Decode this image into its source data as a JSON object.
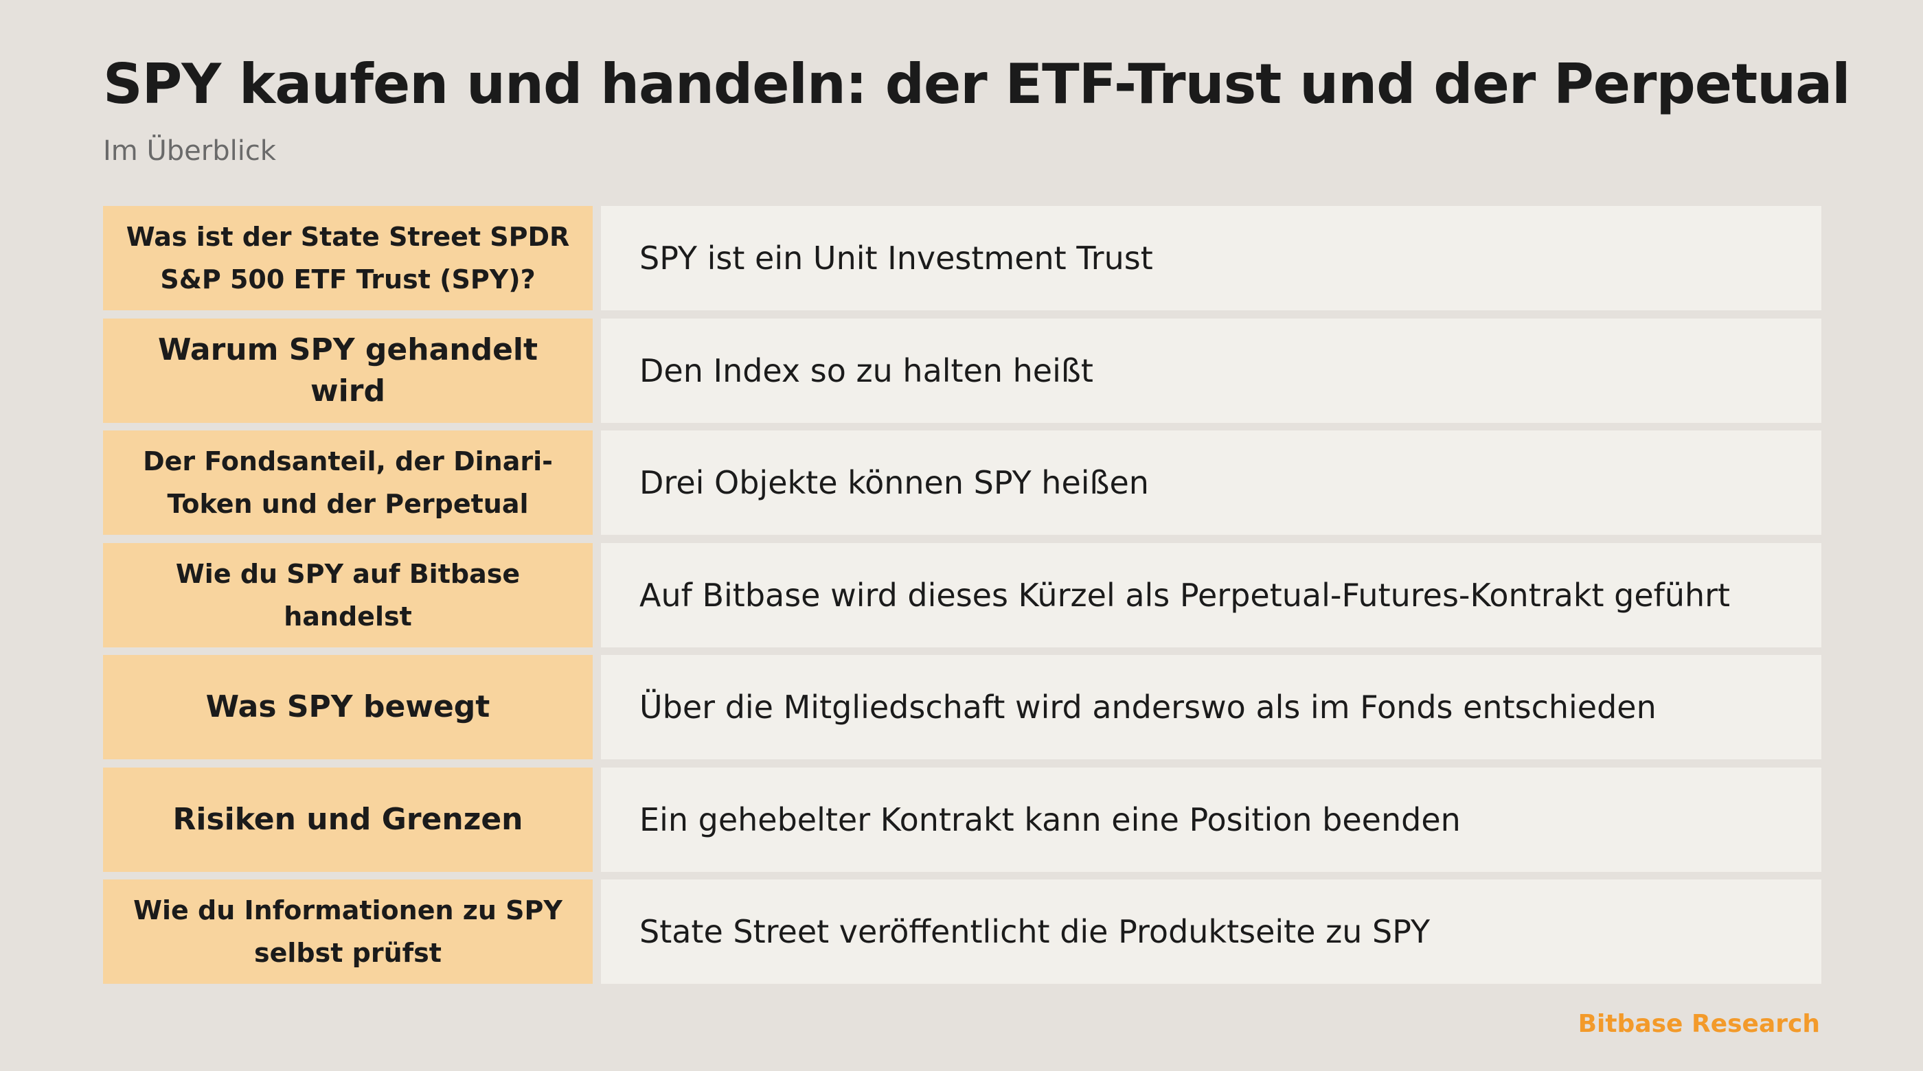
{
  "header": {
    "title": "SPY kaufen und handeln: der ETF-Trust und der Perpetual",
    "subtitle": "Im Überblick"
  },
  "table": {
    "rows": [
      {
        "label": "Was ist der State Street SPDR S&P 500 ETF Trust (SPY)?",
        "value": "SPY ist ein Unit Investment Trust"
      },
      {
        "label": "Warum SPY gehandelt wird",
        "value": "Den Index so zu halten heißt"
      },
      {
        "label": "Der Fondsanteil, der Dinari-Token und der Perpetual",
        "value": "Drei Objekte können SPY heißen"
      },
      {
        "label": "Wie du SPY auf Bitbase handelst",
        "value": "Auf Bitbase wird dieses Kürzel als Perpetual-Futures-Kontrakt geführt"
      },
      {
        "label": "Was SPY bewegt",
        "value": "Über die Mitgliedschaft wird anderswo als im Fonds entschieden"
      },
      {
        "label": "Risiken und Grenzen",
        "value": "Ein gehebelter Kontrakt kann eine Position beenden"
      },
      {
        "label": "Wie du Informationen zu SPY selbst prüfst",
        "value": "State Street veröffentlicht die Produktseite zu SPY"
      }
    ]
  },
  "footer": {
    "brand": "Bitbase Research"
  },
  "colors": {
    "background": "#e5e1dc",
    "label_fill": "#f8d49e",
    "value_fill": "#f2f0eb",
    "brand_accent": "#f39a2a"
  }
}
